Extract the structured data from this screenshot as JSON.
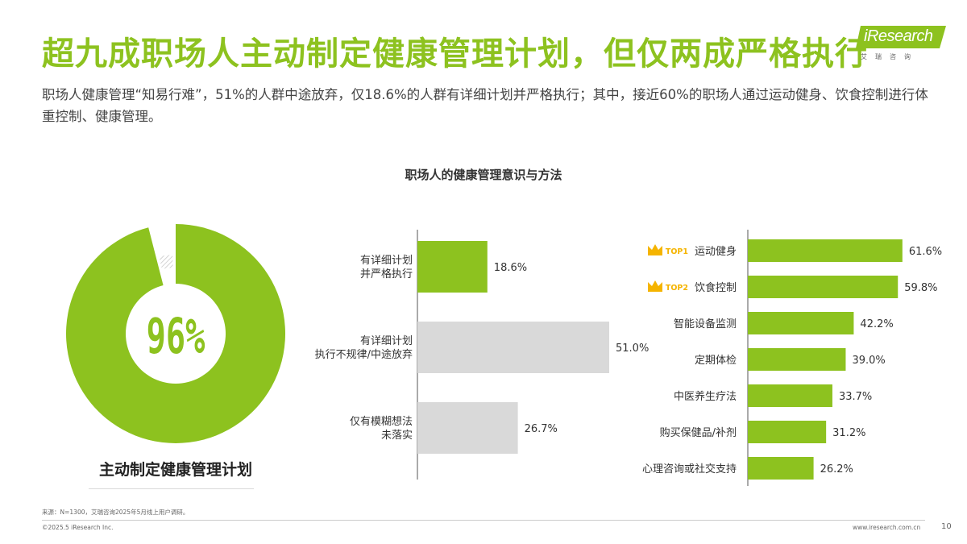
{
  "header": {
    "title": "超九成职场人主动制定健康管理计划，但仅两成严格执行",
    "subtitle": "职场人健康管理“知易行难”，51%的人群中途放弃，仅18.6%的人群有详细计划并严格执行；其中，接近60%的职场人通过运动健身、饮食控制进行体重控制、健康管理。"
  },
  "logo": {
    "text": "iResearch",
    "sub": "艾瑞咨询"
  },
  "chart_title": "职场人的健康管理意识与方法",
  "colors": {
    "accent": "#8dc21f",
    "grey_bar": "#d9d9d9",
    "crown": "#f5b400"
  },
  "chart_data": [
    {
      "type": "pie",
      "variant": "donut",
      "values": [
        96,
        4
      ],
      "center_label": "96%",
      "caption": "主动制定健康管理计划"
    },
    {
      "type": "bar",
      "orientation": "horizontal",
      "categories": [
        [
          "有详细计划",
          "并严格执行"
        ],
        [
          "有详细计划",
          "执行不规律/中途放弃"
        ],
        [
          "仅有模糊想法",
          "未落实"
        ]
      ],
      "values": [
        18.6,
        51.0,
        26.7
      ],
      "labels": [
        "18.6%",
        "51.0%",
        "26.7%"
      ],
      "highlight": [
        true,
        false,
        false
      ],
      "xlim": [
        0,
        60
      ]
    },
    {
      "type": "bar",
      "orientation": "horizontal",
      "categories": [
        "运动健身",
        "饮食控制",
        "智能设备监测",
        "定期体检",
        "中医养生疗法",
        "购买保健品/补剂",
        "心理咨询或社交支持"
      ],
      "badges": [
        "TOP1",
        "TOP2",
        "",
        "",
        "",
        "",
        ""
      ],
      "values": [
        61.6,
        59.8,
        42.2,
        39.0,
        33.7,
        31.2,
        26.2
      ],
      "labels": [
        "61.6%",
        "59.8%",
        "42.2%",
        "39.0%",
        "33.7%",
        "31.2%",
        "26.2%"
      ],
      "xlim": [
        0,
        70
      ]
    }
  ],
  "footer": {
    "source": "来源：N=1300，艾瑞咨询2025年5月线上用户调研。",
    "copyright": "©2025.5 iResearch Inc.",
    "url": "www.iresearch.com.cn",
    "page": "10"
  }
}
